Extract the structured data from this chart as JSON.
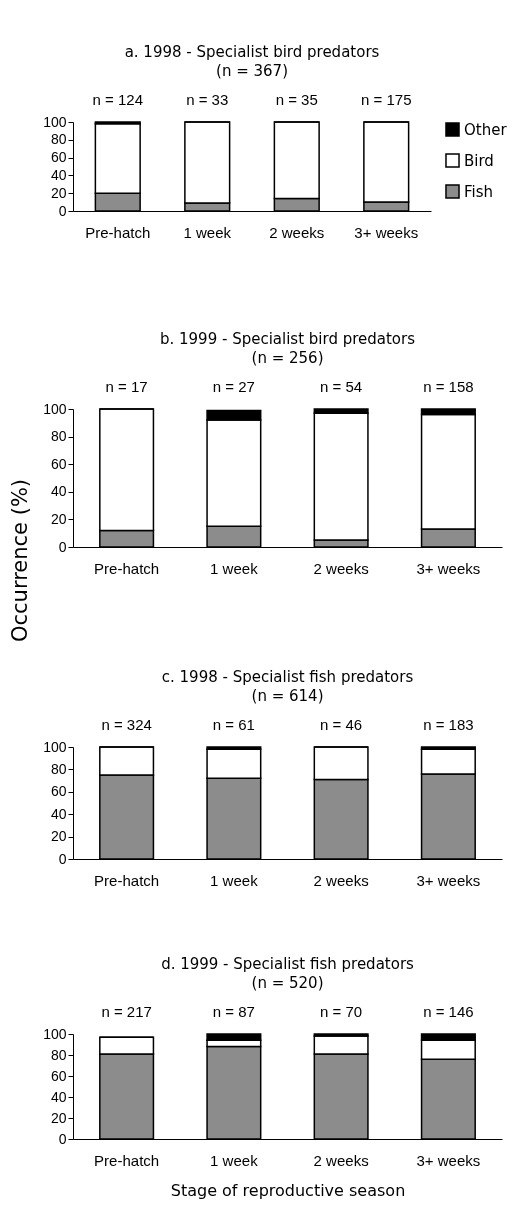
{
  "chart_data": [
    {
      "type": "bar",
      "stacked": true,
      "title": "a. 1998 - Specialist bird predators",
      "subtitle": "(n = 367)",
      "categories": [
        "Pre-hatch",
        "1 week",
        "2 weeks",
        "3+ weeks"
      ],
      "series": [
        {
          "name": "Fish",
          "color": "#8c8c8c",
          "values": [
            20,
            9,
            14,
            10
          ]
        },
        {
          "name": "Bird",
          "color": "#ffffff",
          "values": [
            78,
            91,
            86,
            90
          ]
        },
        {
          "name": "Other",
          "color": "#000000",
          "values": [
            2,
            0,
            0,
            0
          ]
        }
      ],
      "ylim": [
        0,
        100
      ],
      "yticks": [
        0,
        20,
        40,
        60,
        80,
        100
      ],
      "legend": "right",
      "annotations": [
        "n = 124",
        "n = 33",
        "n = 35",
        "n = 175"
      ]
    },
    {
      "type": "bar",
      "stacked": true,
      "title": "b. 1999 - Specialist bird predators",
      "subtitle": "(n = 256)",
      "ylabel": "Occurrence (%)",
      "categories": [
        "Pre-hatch",
        "1 week",
        "2 weeks",
        "3+ weeks"
      ],
      "series": [
        {
          "color": "#8c8c8c",
          "values": [
            12,
            15,
            5,
            13
          ]
        },
        {
          "color": "#ffffff",
          "values": [
            88,
            77,
            92,
            83
          ]
        },
        {
          "color": "#000000",
          "values": [
            0,
            7,
            3,
            4
          ]
        }
      ],
      "ylim": [
        0,
        100
      ],
      "yticks": [
        0,
        20,
        40,
        60,
        80,
        100
      ],
      "annotations": [
        "n = 17",
        "n = 27",
        "n = 54",
        "n = 158"
      ]
    },
    {
      "type": "bar",
      "stacked": true,
      "title": "c. 1998 - Specialist fish predators",
      "subtitle": "(n = 614)",
      "categories": [
        "Pre-hatch",
        "1 week",
        "2 weeks",
        "3+ weeks"
      ],
      "series": [
        {
          "color": "#8c8c8c",
          "values": [
            75,
            72,
            71,
            76
          ]
        },
        {
          "color": "#ffffff",
          "values": [
            25,
            26,
            29,
            22
          ]
        },
        {
          "color": "#000000",
          "values": [
            0,
            2,
            0,
            2
          ]
        }
      ],
      "ylim": [
        0,
        100
      ],
      "yticks": [
        0,
        20,
        40,
        60,
        80,
        100
      ],
      "annotations": [
        "n = 324",
        "n = 61",
        "n = 46",
        "n = 183"
      ]
    },
    {
      "type": "bar",
      "stacked": true,
      "title": "d. 1999 - Specialist fish predators",
      "subtitle": "(n = 520)",
      "xlabel": "Stage of reproductive season",
      "categories": [
        "Pre-hatch",
        "1 week",
        "2 weeks",
        "3+ weeks"
      ],
      "series": [
        {
          "color": "#8c8c8c",
          "values": [
            81,
            88,
            81,
            76
          ]
        },
        {
          "color": "#ffffff",
          "values": [
            16,
            6,
            17,
            18
          ]
        },
        {
          "color": "#000000",
          "values": [
            0,
            6,
            2,
            6
          ]
        }
      ],
      "ylim": [
        0,
        100
      ],
      "yticks": [
        0,
        20,
        40,
        60,
        80,
        100
      ],
      "annotations": [
        "n = 217",
        "n = 87",
        "n = 70",
        "n = 146"
      ]
    }
  ]
}
